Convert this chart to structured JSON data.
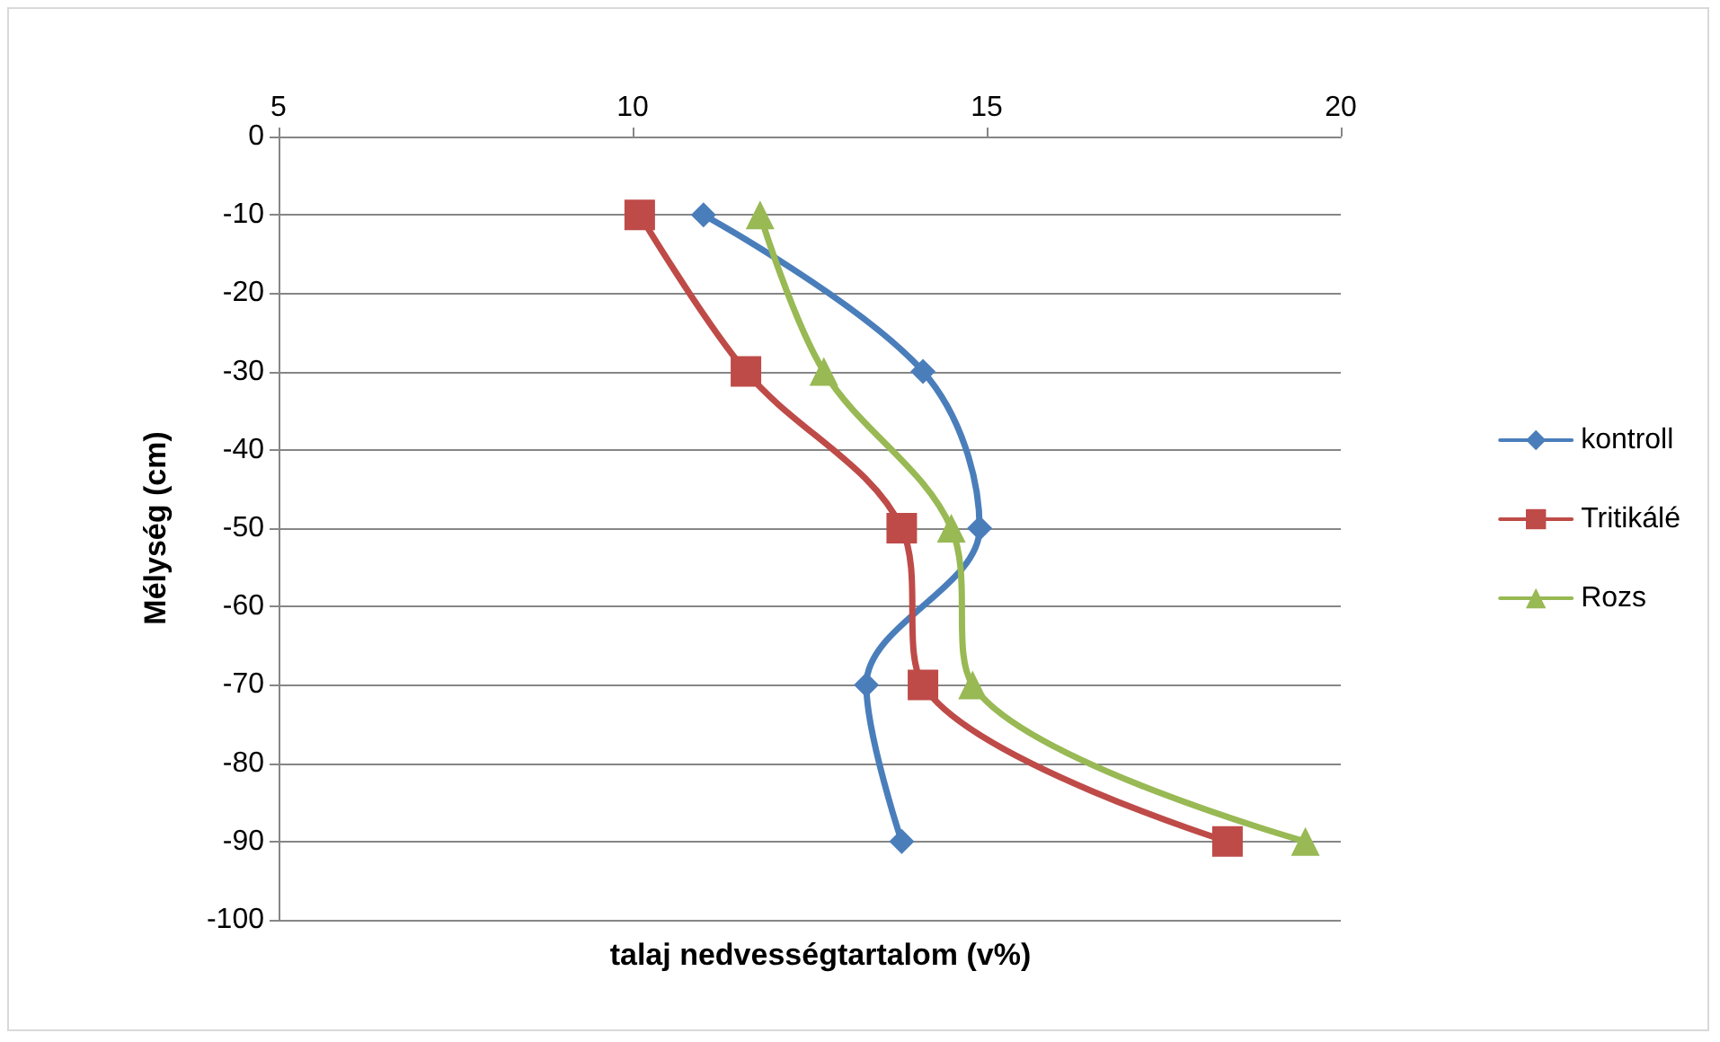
{
  "chart_data": {
    "type": "line",
    "xlabel": "talaj nedvességtartalom (v%)",
    "ylabel": "Mélység (cm)",
    "series": [
      {
        "name": "kontroll",
        "color": "#4a7ebb",
        "marker": "diamond",
        "x": [
          11.0,
          14.1,
          14.9,
          13.3,
          13.8
        ],
        "values": [
          -10,
          -30,
          -50,
          -70,
          -90
        ]
      },
      {
        "name": "Tritikálé",
        "color": "#be4b48",
        "marker": "square",
        "x": [
          10.1,
          11.6,
          13.8,
          14.1,
          18.4
        ],
        "values": [
          -10,
          -30,
          -50,
          -70,
          -90
        ]
      },
      {
        "name": "Rozs",
        "color": "#98b954",
        "marker": "triangle",
        "x": [
          11.8,
          12.7,
          14.5,
          14.8,
          19.5
        ],
        "values": [
          -10,
          -30,
          -50,
          -70,
          -90
        ]
      }
    ],
    "xlim": [
      5,
      20
    ],
    "xticks": [
      5,
      10,
      15,
      20
    ],
    "ylim": [
      -100,
      0
    ],
    "yticks": [
      0,
      -10,
      -20,
      -30,
      -40,
      -50,
      -60,
      -70,
      -80,
      -90,
      -100
    ],
    "grid": "y",
    "legend": "right"
  }
}
